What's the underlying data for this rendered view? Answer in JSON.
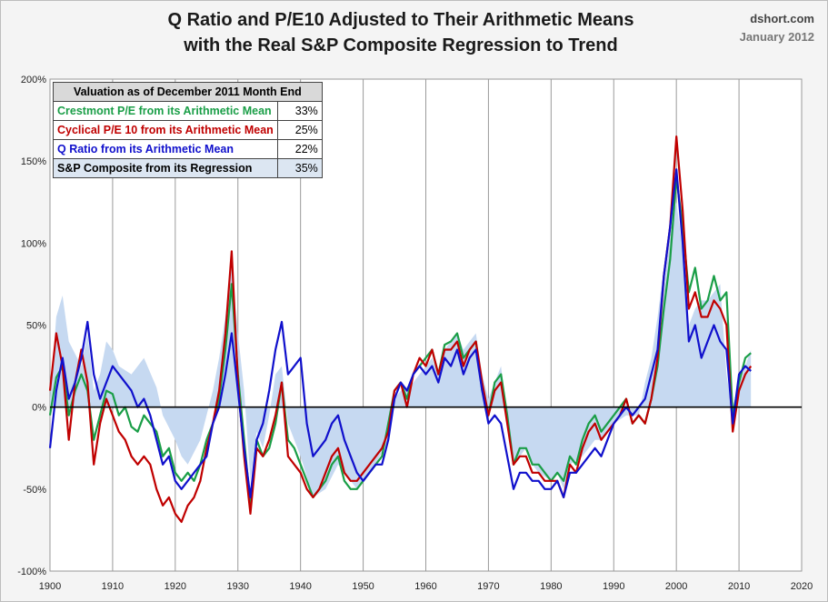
{
  "header": {
    "title_line1": "Q Ratio and P/E10 Adjusted to Their Arithmetic Means",
    "title_line2": "with the Real S&P Composite Regression to Trend",
    "source": "dshort.com",
    "date": "January 2012"
  },
  "table": {
    "title": "Valuation as of December 2011 Month End",
    "rows": [
      {
        "label": "Crestmont P/E from its Arithmetic Mean",
        "value": "33%",
        "color": "#1a9e47"
      },
      {
        "label": "Cyclical P/E 10 from its Arithmetic Mean",
        "value": "25%",
        "color": "#c00000"
      },
      {
        "label": "Q Ratio from its Arithmetic Mean",
        "value": "22%",
        "color": "#1010cc"
      },
      {
        "label": "S&P Composite from its Regression",
        "value": "35%",
        "color": "#000000"
      }
    ]
  },
  "chart_data": {
    "type": "line",
    "title": "Q Ratio and P/E10 Adjusted to Their Arithmetic Means with the Real S&P Composite Regression to Trend",
    "xlim": [
      1900,
      2020
    ],
    "ylim": [
      -100,
      200
    ],
    "x_ticks": [
      1900,
      1910,
      1920,
      1930,
      1940,
      1950,
      1960,
      1970,
      1980,
      1990,
      2000,
      2010,
      2020
    ],
    "y_ticks": [
      -100,
      -50,
      0,
      50,
      100,
      150,
      200
    ],
    "y_tick_labels": [
      "-100%",
      "-50%",
      "0%",
      "50%",
      "100%",
      "150%",
      "200%"
    ],
    "grid": "vertical",
    "series": [
      {
        "name": "S&P Composite from its Regression",
        "style": "area",
        "color": "#c6d9f1",
        "x": [
          1900,
          1901,
          1902,
          1903,
          1905,
          1906,
          1907,
          1908,
          1909,
          1910,
          1911,
          1913,
          1915,
          1917,
          1918,
          1920,
          1921,
          1922,
          1924,
          1926,
          1927,
          1928,
          1929,
          1930,
          1931,
          1932,
          1933,
          1934,
          1935,
          1936,
          1937,
          1938,
          1939,
          1940,
          1942,
          1944,
          1946,
          1948,
          1949,
          1950,
          1952,
          1954,
          1955,
          1956,
          1958,
          1960,
          1961,
          1962,
          1963,
          1964,
          1965,
          1966,
          1967,
          1968,
          1969,
          1970,
          1971,
          1972,
          1973,
          1974,
          1975,
          1976,
          1977,
          1978,
          1980,
          1981,
          1982,
          1983,
          1985,
          1987,
          1988,
          1990,
          1992,
          1994,
          1995,
          1996,
          1997,
          1998,
          1999,
          2000,
          2001,
          2002,
          2003,
          2004,
          2005,
          2006,
          2007,
          2008,
          2009,
          2010,
          2011,
          2011.9
        ],
        "y": [
          5,
          55,
          68,
          40,
          25,
          45,
          10,
          20,
          40,
          35,
          25,
          20,
          30,
          12,
          -5,
          -20,
          -30,
          -35,
          -20,
          10,
          30,
          55,
          85,
          45,
          10,
          -45,
          -15,
          -25,
          -5,
          20,
          25,
          -10,
          -20,
          -30,
          -55,
          -50,
          -35,
          -45,
          -50,
          -45,
          -35,
          -20,
          5,
          10,
          15,
          25,
          30,
          20,
          35,
          40,
          45,
          35,
          40,
          45,
          20,
          5,
          15,
          25,
          -5,
          -35,
          -30,
          -25,
          -35,
          -40,
          -45,
          -40,
          -50,
          -35,
          -30,
          -20,
          -20,
          -10,
          -5,
          -5,
          15,
          30,
          55,
          85,
          110,
          125,
          95,
          50,
          60,
          65,
          65,
          70,
          75,
          20,
          -5,
          15,
          25,
          35
        ]
      },
      {
        "name": "Crestmont P/E from its Arithmetic Mean",
        "style": "line",
        "color": "#1a9e47",
        "x": [
          1900,
          1901,
          1902,
          1903,
          1904,
          1905,
          1906,
          1907,
          1908,
          1909,
          1910,
          1911,
          1912,
          1913,
          1914,
          1915,
          1916,
          1917,
          1918,
          1919,
          1920,
          1921,
          1922,
          1923,
          1924,
          1925,
          1926,
          1927,
          1928,
          1929,
          1930,
          1931,
          1932,
          1933,
          1934,
          1935,
          1936,
          1937,
          1938,
          1939,
          1940,
          1941,
          1942,
          1943,
          1944,
          1945,
          1946,
          1947,
          1948,
          1949,
          1950,
          1951,
          1952,
          1953,
          1954,
          1955,
          1956,
          1957,
          1958,
          1959,
          1960,
          1961,
          1962,
          1963,
          1964,
          1965,
          1966,
          1967,
          1968,
          1969,
          1970,
          1971,
          1972,
          1973,
          1974,
          1975,
          1976,
          1977,
          1978,
          1979,
          1980,
          1981,
          1982,
          1983,
          1984,
          1985,
          1986,
          1987,
          1988,
          1989,
          1990,
          1991,
          1992,
          1993,
          1994,
          1995,
          1996,
          1997,
          1998,
          1999,
          2000,
          2001,
          2002,
          2003,
          2004,
          2005,
          2006,
          2007,
          2008,
          2009,
          2010,
          2011,
          2011.9
        ],
        "y": [
          -5,
          18,
          25,
          -5,
          10,
          20,
          10,
          -20,
          -5,
          10,
          8,
          -5,
          0,
          -12,
          -15,
          -5,
          -10,
          -15,
          -30,
          -25,
          -40,
          -45,
          -40,
          -45,
          -35,
          -20,
          -10,
          5,
          35,
          75,
          20,
          -20,
          -60,
          -20,
          -30,
          -25,
          -10,
          15,
          -20,
          -25,
          -35,
          -45,
          -55,
          -50,
          -45,
          -35,
          -30,
          -45,
          -50,
          -50,
          -45,
          -40,
          -35,
          -30,
          -10,
          10,
          15,
          5,
          20,
          25,
          30,
          35,
          20,
          38,
          40,
          45,
          30,
          35,
          40,
          10,
          -5,
          15,
          20,
          -5,
          -35,
          -25,
          -25,
          -35,
          -35,
          -40,
          -45,
          -40,
          -45,
          -30,
          -35,
          -20,
          -10,
          -5,
          -15,
          -10,
          -5,
          0,
          5,
          -10,
          -5,
          -10,
          5,
          25,
          60,
          90,
          140,
          110,
          70,
          85,
          60,
          65,
          80,
          65,
          70,
          -5,
          15,
          30,
          33
        ]
      },
      {
        "name": "Cyclical P/E 10 from its Arithmetic Mean",
        "style": "line",
        "color": "#c00000",
        "x": [
          1900,
          1901,
          1902,
          1903,
          1904,
          1905,
          1906,
          1907,
          1908,
          1909,
          1910,
          1911,
          1912,
          1913,
          1914,
          1915,
          1916,
          1917,
          1918,
          1919,
          1920,
          1921,
          1922,
          1923,
          1924,
          1925,
          1926,
          1927,
          1928,
          1929,
          1930,
          1931,
          1932,
          1933,
          1934,
          1935,
          1936,
          1937,
          1938,
          1939,
          1940,
          1941,
          1942,
          1943,
          1944,
          1945,
          1946,
          1947,
          1948,
          1949,
          1950,
          1951,
          1952,
          1953,
          1954,
          1955,
          1956,
          1957,
          1958,
          1959,
          1960,
          1961,
          1962,
          1963,
          1964,
          1965,
          1966,
          1967,
          1968,
          1969,
          1970,
          1971,
          1972,
          1973,
          1974,
          1975,
          1976,
          1977,
          1978,
          1979,
          1980,
          1981,
          1982,
          1983,
          1984,
          1985,
          1986,
          1987,
          1988,
          1989,
          1990,
          1991,
          1992,
          1993,
          1994,
          1995,
          1996,
          1997,
          1998,
          1999,
          2000,
          2001,
          2002,
          2003,
          2004,
          2005,
          2006,
          2007,
          2008,
          2009,
          2010,
          2011,
          2011.9
        ],
        "y": [
          10,
          45,
          25,
          -20,
          15,
          35,
          15,
          -35,
          -10,
          5,
          -5,
          -15,
          -20,
          -30,
          -35,
          -30,
          -35,
          -50,
          -60,
          -55,
          -65,
          -70,
          -60,
          -55,
          -45,
          -25,
          -10,
          10,
          45,
          95,
          15,
          -30,
          -65,
          -25,
          -30,
          -20,
          -5,
          15,
          -30,
          -35,
          -40,
          -50,
          -55,
          -50,
          -40,
          -30,
          -25,
          -40,
          -45,
          -45,
          -40,
          -35,
          -30,
          -25,
          -15,
          10,
          15,
          0,
          20,
          30,
          25,
          35,
          20,
          35,
          35,
          40,
          25,
          35,
          40,
          15,
          -5,
          10,
          15,
          -10,
          -35,
          -30,
          -30,
          -40,
          -40,
          -45,
          -45,
          -45,
          -55,
          -35,
          -40,
          -25,
          -15,
          -10,
          -20,
          -15,
          -10,
          -5,
          5,
          -10,
          -5,
          -10,
          5,
          30,
          80,
          110,
          165,
          120,
          60,
          70,
          55,
          55,
          65,
          60,
          50,
          -15,
          10,
          20,
          25
        ]
      },
      {
        "name": "Q Ratio from its Arithmetic Mean",
        "style": "line",
        "color": "#1010cc",
        "x": [
          1900,
          1901,
          1902,
          1903,
          1904,
          1905,
          1906,
          1907,
          1908,
          1909,
          1910,
          1911,
          1912,
          1913,
          1914,
          1915,
          1916,
          1917,
          1918,
          1919,
          1920,
          1921,
          1922,
          1923,
          1924,
          1925,
          1926,
          1927,
          1928,
          1929,
          1930,
          1931,
          1932,
          1933,
          1934,
          1935,
          1936,
          1937,
          1938,
          1939,
          1940,
          1941,
          1942,
          1943,
          1944,
          1945,
          1946,
          1947,
          1948,
          1949,
          1950,
          1951,
          1952,
          1953,
          1954,
          1955,
          1956,
          1957,
          1958,
          1959,
          1960,
          1961,
          1962,
          1963,
          1964,
          1965,
          1966,
          1967,
          1968,
          1969,
          1970,
          1971,
          1972,
          1973,
          1974,
          1975,
          1976,
          1977,
          1978,
          1979,
          1980,
          1981,
          1982,
          1983,
          1984,
          1985,
          1986,
          1987,
          1988,
          1989,
          1990,
          1991,
          1992,
          1993,
          1994,
          1995,
          1996,
          1997,
          1998,
          1999,
          2000,
          2001,
          2002,
          2003,
          2004,
          2005,
          2006,
          2007,
          2008,
          2009,
          2010,
          2011,
          2011.9
        ],
        "y": [
          -25,
          10,
          30,
          5,
          15,
          30,
          52,
          20,
          5,
          15,
          25,
          20,
          15,
          10,
          0,
          5,
          -5,
          -20,
          -35,
          -30,
          -45,
          -50,
          -45,
          -40,
          -35,
          -30,
          -10,
          0,
          20,
          45,
          10,
          -25,
          -55,
          -20,
          -10,
          10,
          35,
          52,
          20,
          25,
          30,
          -10,
          -30,
          -25,
          -20,
          -10,
          -5,
          -20,
          -30,
          -40,
          -45,
          -40,
          -35,
          -35,
          -20,
          5,
          15,
          10,
          20,
          25,
          20,
          25,
          15,
          30,
          25,
          35,
          20,
          30,
          35,
          10,
          -10,
          -5,
          -10,
          -30,
          -50,
          -40,
          -40,
          -45,
          -45,
          -50,
          -50,
          -45,
          -55,
          -40,
          -40,
          -35,
          -30,
          -25,
          -30,
          -20,
          -10,
          -5,
          0,
          -5,
          0,
          5,
          20,
          35,
          80,
          110,
          145,
          100,
          40,
          50,
          30,
          40,
          50,
          40,
          35,
          -10,
          20,
          25,
          22
        ]
      }
    ]
  }
}
